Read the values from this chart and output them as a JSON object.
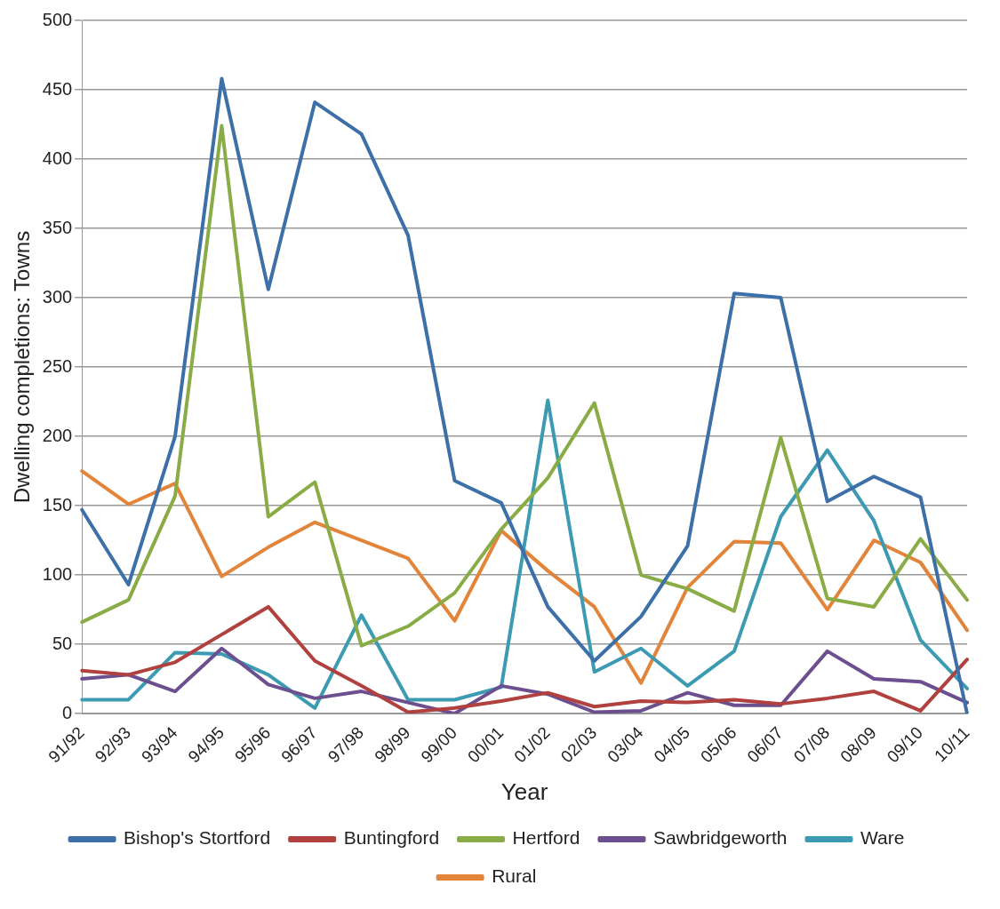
{
  "chart_data": {
    "type": "line",
    "xlabel": "Year",
    "ylabel": "Dwelling completions: Towns",
    "categories": [
      "91/92",
      "92/93",
      "93/94",
      "94/95",
      "95/96",
      "96/97",
      "97/98",
      "98/99",
      "99/00",
      "00/01",
      "01/02",
      "02/03",
      "03/04",
      "04/05",
      "05/06",
      "06/07",
      "07/08",
      "08/09",
      "09/10",
      "10/11"
    ],
    "series": [
      {
        "name": "Bishop's Stortford",
        "color": "#3d6fa8",
        "values": [
          147,
          93,
          200,
          458,
          306,
          441,
          418,
          345,
          168,
          152,
          77,
          38,
          70,
          121,
          303,
          300,
          153,
          171,
          156,
          0
        ]
      },
      {
        "name": "Buntingford",
        "color": "#b0413e",
        "values": [
          31,
          28,
          37,
          57,
          77,
          38,
          20,
          1,
          4,
          9,
          15,
          5,
          9,
          8,
          10,
          7,
          11,
          16,
          2,
          39
        ]
      },
      {
        "name": "Hertford",
        "color": "#8aac46",
        "values": [
          66,
          82,
          157,
          424,
          142,
          167,
          49,
          63,
          87,
          133,
          170,
          224,
          100,
          90,
          74,
          199,
          83,
          77,
          126,
          82
        ]
      },
      {
        "name": "Sawbridgeworth",
        "color": "#6b4f8f",
        "values": [
          25,
          28,
          16,
          47,
          21,
          11,
          16,
          8,
          0,
          20,
          14,
          1,
          2,
          15,
          6,
          6,
          45,
          25,
          23,
          8
        ]
      },
      {
        "name": "Ware",
        "color": "#3c9bb3",
        "values": [
          10,
          10,
          44,
          43,
          28,
          4,
          71,
          10,
          10,
          19,
          226,
          30,
          47,
          20,
          45,
          142,
          190,
          139,
          53,
          18
        ]
      },
      {
        "name": "Rural",
        "color": "#e2843a",
        "values": [
          175,
          151,
          166,
          99,
          120,
          138,
          125,
          112,
          67,
          132,
          103,
          77,
          22,
          91,
          124,
          123,
          75,
          125,
          109,
          60
        ]
      }
    ],
    "ylim": [
      0,
      500
    ],
    "yticks": [
      0,
      50,
      100,
      150,
      200,
      250,
      300,
      350,
      400,
      450,
      500
    ],
    "grid": "y",
    "legend": "bottom",
    "marker": "none",
    "line_style": "solid"
  }
}
